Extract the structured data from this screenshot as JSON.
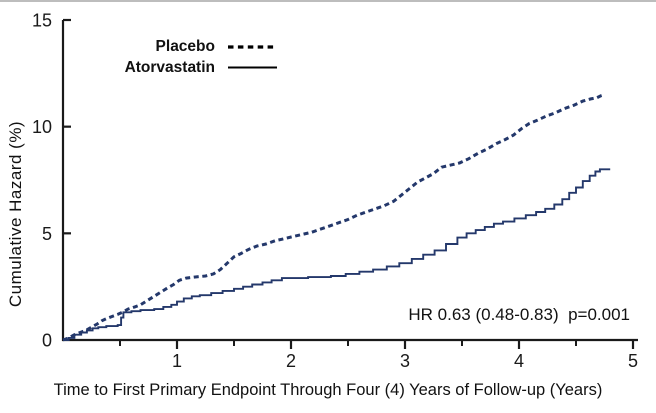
{
  "chart_data": {
    "type": "line",
    "title": "",
    "xlabel": "Time to First Primary Endpoint Through Four (4) Years of Follow-up (Years)",
    "ylabel": "Cumulative Hazard (%)",
    "xlim": [
      0,
      5
    ],
    "ylim": [
      0,
      15
    ],
    "x_major_ticks": [
      1,
      2,
      3,
      4,
      5
    ],
    "x_minor_ticks": [
      0.5,
      1.5,
      2.5,
      3.5,
      4.5
    ],
    "y_ticks": [
      0,
      5,
      10,
      15
    ],
    "grid": false,
    "legend_position": "top-left-inside",
    "annotation": "HR 0.63 (0.48-0.83)  p=0.001",
    "colors": {
      "curve": "#24386b",
      "axis": "#1a1a1a",
      "text": "#1a1a1a",
      "legend_sample": "#000000"
    },
    "series": [
      {
        "name": "Placebo",
        "line_style": "dashed",
        "points": [
          [
            0,
            0
          ],
          [
            0.05,
            0.1
          ],
          [
            0.1,
            0.25
          ],
          [
            0.15,
            0.35
          ],
          [
            0.2,
            0.45
          ],
          [
            0.25,
            0.6
          ],
          [
            0.3,
            0.75
          ],
          [
            0.34,
            0.9
          ],
          [
            0.38,
            1.0
          ],
          [
            0.43,
            1.1
          ],
          [
            0.48,
            1.2
          ],
          [
            0.52,
            1.3
          ],
          [
            0.57,
            1.45
          ],
          [
            0.63,
            1.55
          ],
          [
            0.68,
            1.65
          ],
          [
            0.74,
            1.85
          ],
          [
            0.8,
            2.05
          ],
          [
            0.86,
            2.25
          ],
          [
            0.92,
            2.45
          ],
          [
            0.97,
            2.6
          ],
          [
            1.02,
            2.8
          ],
          [
            1.08,
            2.9
          ],
          [
            1.15,
            2.95
          ],
          [
            1.25,
            3.0
          ],
          [
            1.32,
            3.1
          ],
          [
            1.38,
            3.3
          ],
          [
            1.44,
            3.6
          ],
          [
            1.5,
            3.9
          ],
          [
            1.56,
            4.05
          ],
          [
            1.63,
            4.25
          ],
          [
            1.7,
            4.4
          ],
          [
            1.78,
            4.5
          ],
          [
            1.86,
            4.65
          ],
          [
            1.94,
            4.75
          ],
          [
            2.02,
            4.85
          ],
          [
            2.1,
            4.95
          ],
          [
            2.18,
            5.05
          ],
          [
            2.26,
            5.2
          ],
          [
            2.34,
            5.35
          ],
          [
            2.42,
            5.5
          ],
          [
            2.5,
            5.65
          ],
          [
            2.58,
            5.85
          ],
          [
            2.66,
            6.0
          ],
          [
            2.74,
            6.15
          ],
          [
            2.82,
            6.3
          ],
          [
            2.9,
            6.5
          ],
          [
            2.97,
            6.8
          ],
          [
            3.04,
            7.1
          ],
          [
            3.11,
            7.4
          ],
          [
            3.18,
            7.6
          ],
          [
            3.25,
            7.8
          ],
          [
            3.32,
            8.1
          ],
          [
            3.4,
            8.2
          ],
          [
            3.48,
            8.3
          ],
          [
            3.56,
            8.5
          ],
          [
            3.64,
            8.75
          ],
          [
            3.72,
            8.95
          ],
          [
            3.8,
            9.2
          ],
          [
            3.88,
            9.4
          ],
          [
            3.95,
            9.6
          ],
          [
            4.02,
            9.9
          ],
          [
            4.09,
            10.15
          ],
          [
            4.16,
            10.3
          ],
          [
            4.24,
            10.5
          ],
          [
            4.32,
            10.65
          ],
          [
            4.4,
            10.85
          ],
          [
            4.48,
            11.0
          ],
          [
            4.56,
            11.2
          ],
          [
            4.63,
            11.3
          ],
          [
            4.68,
            11.35
          ],
          [
            4.72,
            11.45
          ],
          [
            4.75,
            11.5
          ]
        ]
      },
      {
        "name": "Atorvastatin",
        "line_style": "solid",
        "points": [
          [
            0,
            0
          ],
          [
            0.05,
            0.1
          ],
          [
            0.1,
            0.25
          ],
          [
            0.16,
            0.35
          ],
          [
            0.21,
            0.45
          ],
          [
            0.26,
            0.55
          ],
          [
            0.31,
            0.6
          ],
          [
            0.38,
            0.65
          ],
          [
            0.48,
            0.7
          ],
          [
            0.51,
            1.05
          ],
          [
            0.53,
            1.3
          ],
          [
            0.6,
            1.35
          ],
          [
            0.68,
            1.4
          ],
          [
            0.8,
            1.45
          ],
          [
            0.88,
            1.55
          ],
          [
            0.95,
            1.65
          ],
          [
            1.0,
            1.8
          ],
          [
            1.06,
            1.95
          ],
          [
            1.13,
            2.05
          ],
          [
            1.2,
            2.1
          ],
          [
            1.3,
            2.2
          ],
          [
            1.4,
            2.3
          ],
          [
            1.5,
            2.4
          ],
          [
            1.58,
            2.5
          ],
          [
            1.66,
            2.6
          ],
          [
            1.75,
            2.7
          ],
          [
            1.83,
            2.8
          ],
          [
            1.92,
            2.9
          ],
          [
            2.15,
            2.95
          ],
          [
            2.35,
            3.0
          ],
          [
            2.48,
            3.1
          ],
          [
            2.6,
            3.2
          ],
          [
            2.72,
            3.3
          ],
          [
            2.84,
            3.45
          ],
          [
            2.95,
            3.6
          ],
          [
            3.06,
            3.8
          ],
          [
            3.16,
            4.0
          ],
          [
            3.26,
            4.2
          ],
          [
            3.36,
            4.5
          ],
          [
            3.46,
            4.8
          ],
          [
            3.54,
            5.0
          ],
          [
            3.62,
            5.15
          ],
          [
            3.7,
            5.3
          ],
          [
            3.78,
            5.45
          ],
          [
            3.86,
            5.55
          ],
          [
            3.96,
            5.7
          ],
          [
            4.06,
            5.85
          ],
          [
            4.15,
            6.0
          ],
          [
            4.23,
            6.15
          ],
          [
            4.31,
            6.35
          ],
          [
            4.38,
            6.6
          ],
          [
            4.44,
            6.9
          ],
          [
            4.5,
            7.15
          ],
          [
            4.56,
            7.45
          ],
          [
            4.62,
            7.7
          ],
          [
            4.67,
            7.9
          ],
          [
            4.71,
            8.0
          ],
          [
            4.8,
            8.0
          ]
        ]
      }
    ]
  }
}
